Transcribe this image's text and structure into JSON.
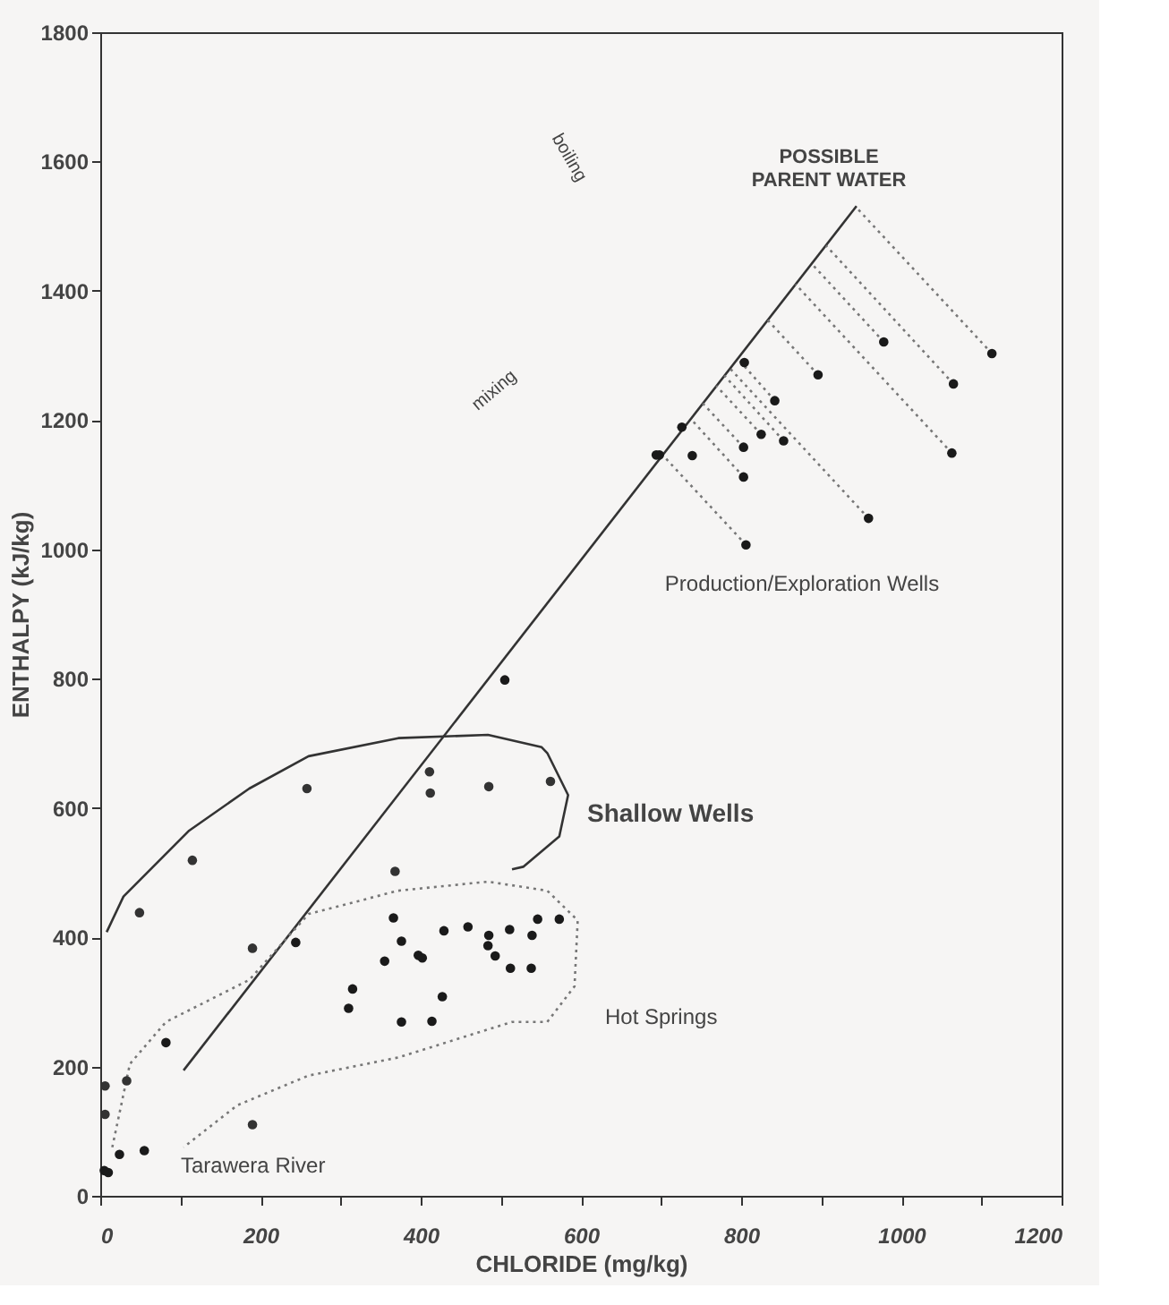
{
  "chart_data": {
    "type": "scatter",
    "xlabel": "CHLORIDE (mg/kg)",
    "ylabel": "ENTHALPY (kJ/kg)",
    "xlim": [
      0,
      1200
    ],
    "ylim": [
      0,
      1800
    ],
    "xticks": [
      0,
      {
        "value": 100,
        "label": null
      },
      200,
      {
        "value": 300,
        "label": null
      },
      400,
      {
        "value": 500,
        "label": null
      },
      600,
      {
        "value": 700,
        "label": null
      },
      800,
      {
        "value": 900,
        "label": null
      },
      1000,
      {
        "value": 1100,
        "label": null
      },
      1200
    ],
    "yticks": [
      0,
      200,
      400,
      600,
      800,
      1000,
      1200,
      1400,
      1600,
      1800
    ],
    "grid": false,
    "series": [
      {
        "type": "line",
        "color": "#333333",
        "line_style": "solid",
        "x": [
          104,
          944
        ],
        "values": [
          194,
          1531
        ]
      },
      {
        "type": "line",
        "color": "#333333",
        "line_style": "solid",
        "x": [
          8,
          29,
          111,
          186,
          260,
          372,
          484,
          551,
          558,
          584,
          573,
          528,
          514
        ],
        "values": [
          408,
          463,
          565,
          630,
          680,
          708,
          713,
          694,
          685,
          620,
          556,
          509,
          505
        ]
      },
      {
        "type": "line",
        "color": "#777777",
        "line_style": "dotted",
        "x": [
          15,
          37,
          82,
          186,
          260,
          372,
          484,
          558,
          596,
          592,
          558,
          514,
          372,
          260,
          171,
          104
        ],
        "values": [
          75,
          204,
          269,
          334,
          436,
          472,
          486,
          472,
          426,
          324,
          269,
          269,
          214,
          186,
          140,
          75
        ]
      },
      {
        "type": "line",
        "color": "#777777",
        "line_style": "dotted",
        "x": [
          1113,
          943
        ],
        "values": [
          1303,
          1530
        ]
      },
      {
        "type": "line",
        "color": "#777777",
        "line_style": "dotted",
        "x": [
          1065,
          906
        ],
        "values": [
          1256,
          1470
        ]
      },
      {
        "type": "line",
        "color": "#777777",
        "line_style": "dotted",
        "x": [
          1063,
          868
        ],
        "values": [
          1149,
          1410
        ]
      },
      {
        "type": "line",
        "color": "#777777",
        "line_style": "dotted",
        "x": [
          978,
          888
        ],
        "values": [
          1321,
          1442
        ]
      },
      {
        "type": "line",
        "color": "#777777",
        "line_style": "dotted",
        "x": [
          896,
          833
        ],
        "values": [
          1270,
          1355
        ]
      },
      {
        "type": "line",
        "color": "#777777",
        "line_style": "dotted",
        "x": [
          959,
          786
        ],
        "values": [
          1048,
          1280
        ]
      },
      {
        "type": "line",
        "color": "#777777",
        "line_style": "dotted",
        "x": [
          842,
          795
        ],
        "values": [
          1230,
          1296
        ]
      },
      {
        "type": "line",
        "color": "#777777",
        "line_style": "dotted",
        "x": [
          825,
          769
        ],
        "values": [
          1178,
          1253
        ]
      },
      {
        "type": "line",
        "color": "#777777",
        "line_style": "dotted",
        "x": [
          853,
          779
        ],
        "values": [
          1168,
          1269
        ]
      },
      {
        "type": "line",
        "color": "#777777",
        "line_style": "dotted",
        "x": [
          803,
          752
        ],
        "values": [
          1158,
          1226
        ]
      },
      {
        "type": "line",
        "color": "#777777",
        "line_style": "dotted",
        "x": [
          803,
          737
        ],
        "values": [
          1112,
          1202
        ]
      },
      {
        "type": "line",
        "color": "#777777",
        "line_style": "dotted",
        "x": [
          806,
          702
        ],
        "values": [
          1007,
          1146
        ]
      },
      {
        "marker": "circle",
        "color": "#1a1a1a",
        "x": [
          1113,
          1065,
          1063,
          978,
          896,
          959,
          804,
          842,
          825,
          853,
          803,
          803,
          806,
          739,
          726,
          698,
          694,
          505
        ],
        "values": [
          1303,
          1256,
          1149,
          1321,
          1270,
          1048,
          1289,
          1230,
          1178,
          1168,
          1158,
          1112,
          1007,
          1145,
          1189,
          1146,
          1146,
          798
        ]
      },
      {
        "marker": "circle",
        "color": "#1a1a1a",
        "x": [
          82,
          244,
          315,
          310,
          366,
          355,
          376,
          376,
          397,
          402,
          414,
          427,
          429,
          459,
          485,
          484,
          493,
          511,
          512,
          539,
          538,
          546,
          573,
          10,
          5,
          24,
          55
        ],
        "values": [
          237,
          392,
          320,
          290,
          430,
          363,
          394,
          269,
          372,
          368,
          270,
          308,
          410,
          416,
          403,
          387,
          371,
          412,
          352,
          403,
          352,
          428,
          428,
          36,
          39,
          64,
          70
        ]
      },
      {
        "marker": "circle",
        "color": "#333333",
        "x": [
          6,
          6,
          33,
          49,
          115,
          190,
          190,
          258,
          368,
          411,
          412,
          485,
          562
        ],
        "values": [
          170,
          126,
          178,
          438,
          519,
          383,
          110,
          630,
          502,
          656,
          623,
          633,
          641
        ]
      }
    ],
    "annotations": [
      "POSSIBLE\nPARENT WATER",
      "Production/Exploration Wells",
      "Shallow Wells",
      "Hot Springs",
      "Tarawera River",
      "boiling",
      "mixing"
    ]
  }
}
